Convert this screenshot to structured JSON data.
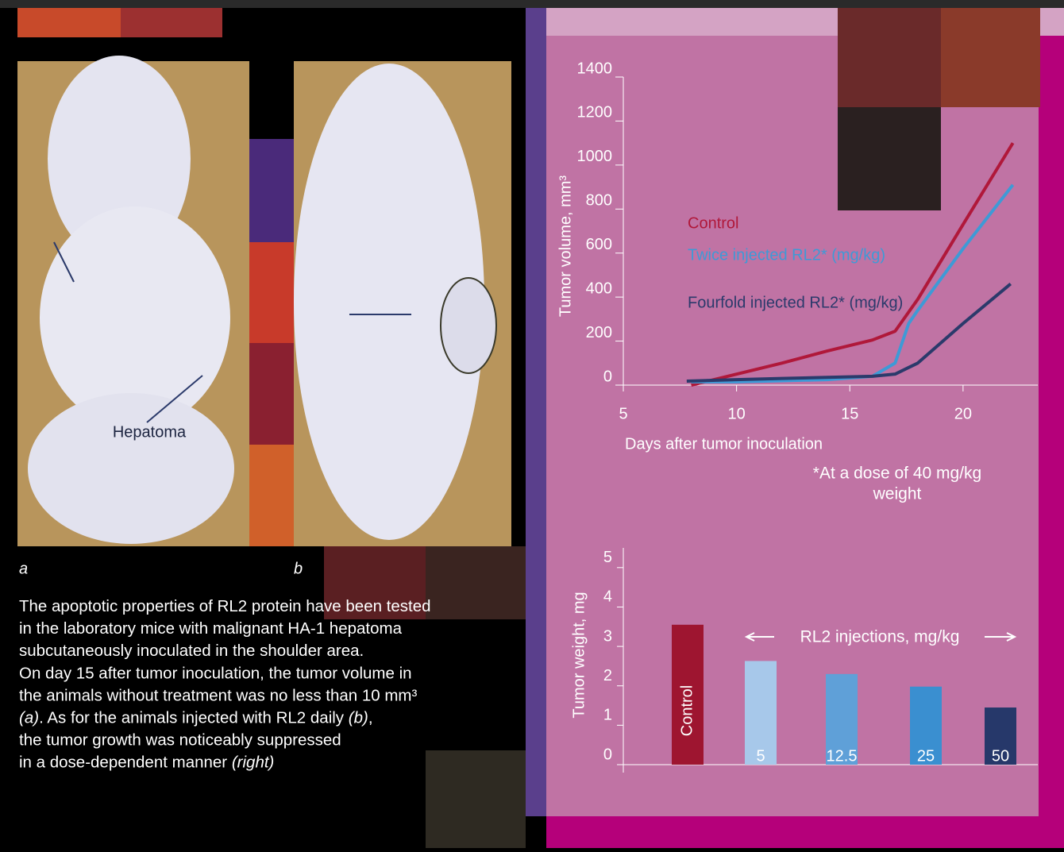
{
  "photos": {
    "label": "Hepatoma",
    "captions": [
      "a",
      "b"
    ]
  },
  "body": [
    [
      "The apoptotic properties of RL2 protein have been tested"
    ],
    [
      "in the laboratory mice with malignant HA-1 hepatoma"
    ],
    [
      "subcutaneously inoculated in the shoulder area."
    ],
    [
      "On day 15 after tumor inoculation, the tumor volume in"
    ],
    [
      "the animals without treatment was no less than 10 mm³"
    ],
    [
      {
        "text": "(a)",
        "italic": true
      },
      ". As for the animals injected with RL2 daily ",
      {
        "text": "(b)",
        "italic": true
      },
      ","
    ],
    [
      "the tumor growth was noticeably suppressed"
    ],
    [
      "in a dose-dependent manner ",
      {
        "text": "(right)",
        "italic": true
      }
    ]
  ],
  "chart_data": [
    {
      "type": "line",
      "x_label": "Days after tumor inoculation",
      "y_label": "Tumor volume, mm³",
      "note": [
        "*At a dose of 40 mg/kg",
        "weight"
      ],
      "xlim": [
        5,
        23.3
      ],
      "xticks": [
        5,
        10,
        15,
        20
      ],
      "ylim": [
        0,
        1400
      ],
      "yticks": [
        0,
        200,
        400,
        600,
        800,
        1000,
        1200,
        1400
      ],
      "series": [
        {
          "name": "Control",
          "color": "#b0183a",
          "x": [
            8,
            10,
            12,
            14,
            16,
            17,
            18,
            20,
            22.2
          ],
          "values": [
            0,
            50,
            100,
            155,
            205,
            245,
            390,
            730,
            1100
          ]
        },
        {
          "name": "Twice injected RL2* (mg/kg)",
          "color": "#3e9ad6",
          "x": [
            8,
            10,
            12,
            14,
            16,
            17,
            17.6,
            18,
            20,
            22.2
          ],
          "values": [
            15,
            15,
            20,
            25,
            40,
            100,
            280,
            340,
            620,
            910
          ]
        },
        {
          "name": "Fourfold injected RL2* (mg/kg)",
          "color": "#2b3a6b",
          "x": [
            7.8,
            10,
            12,
            14,
            16,
            17,
            18,
            20,
            22.1
          ],
          "values": [
            18,
            25,
            30,
            35,
            40,
            50,
            100,
            280,
            460
          ]
        }
      ]
    },
    {
      "type": "bar",
      "y_label": "Tumor weight, mg",
      "annotation": "RL2 injections, mg/kg",
      "categories": [
        "Control",
        "5",
        "12.5",
        "25",
        "50"
      ],
      "values": [
        3.55,
        2.63,
        2.3,
        1.98,
        1.45
      ],
      "colors": [
        "#9e1530",
        "#a7c8ea",
        "#5fa0d8",
        "#3a8fd0",
        "#26386a"
      ],
      "ylim": [
        0,
        5.5
      ],
      "yticks": [
        0,
        1,
        2,
        3,
        4,
        5
      ]
    }
  ]
}
